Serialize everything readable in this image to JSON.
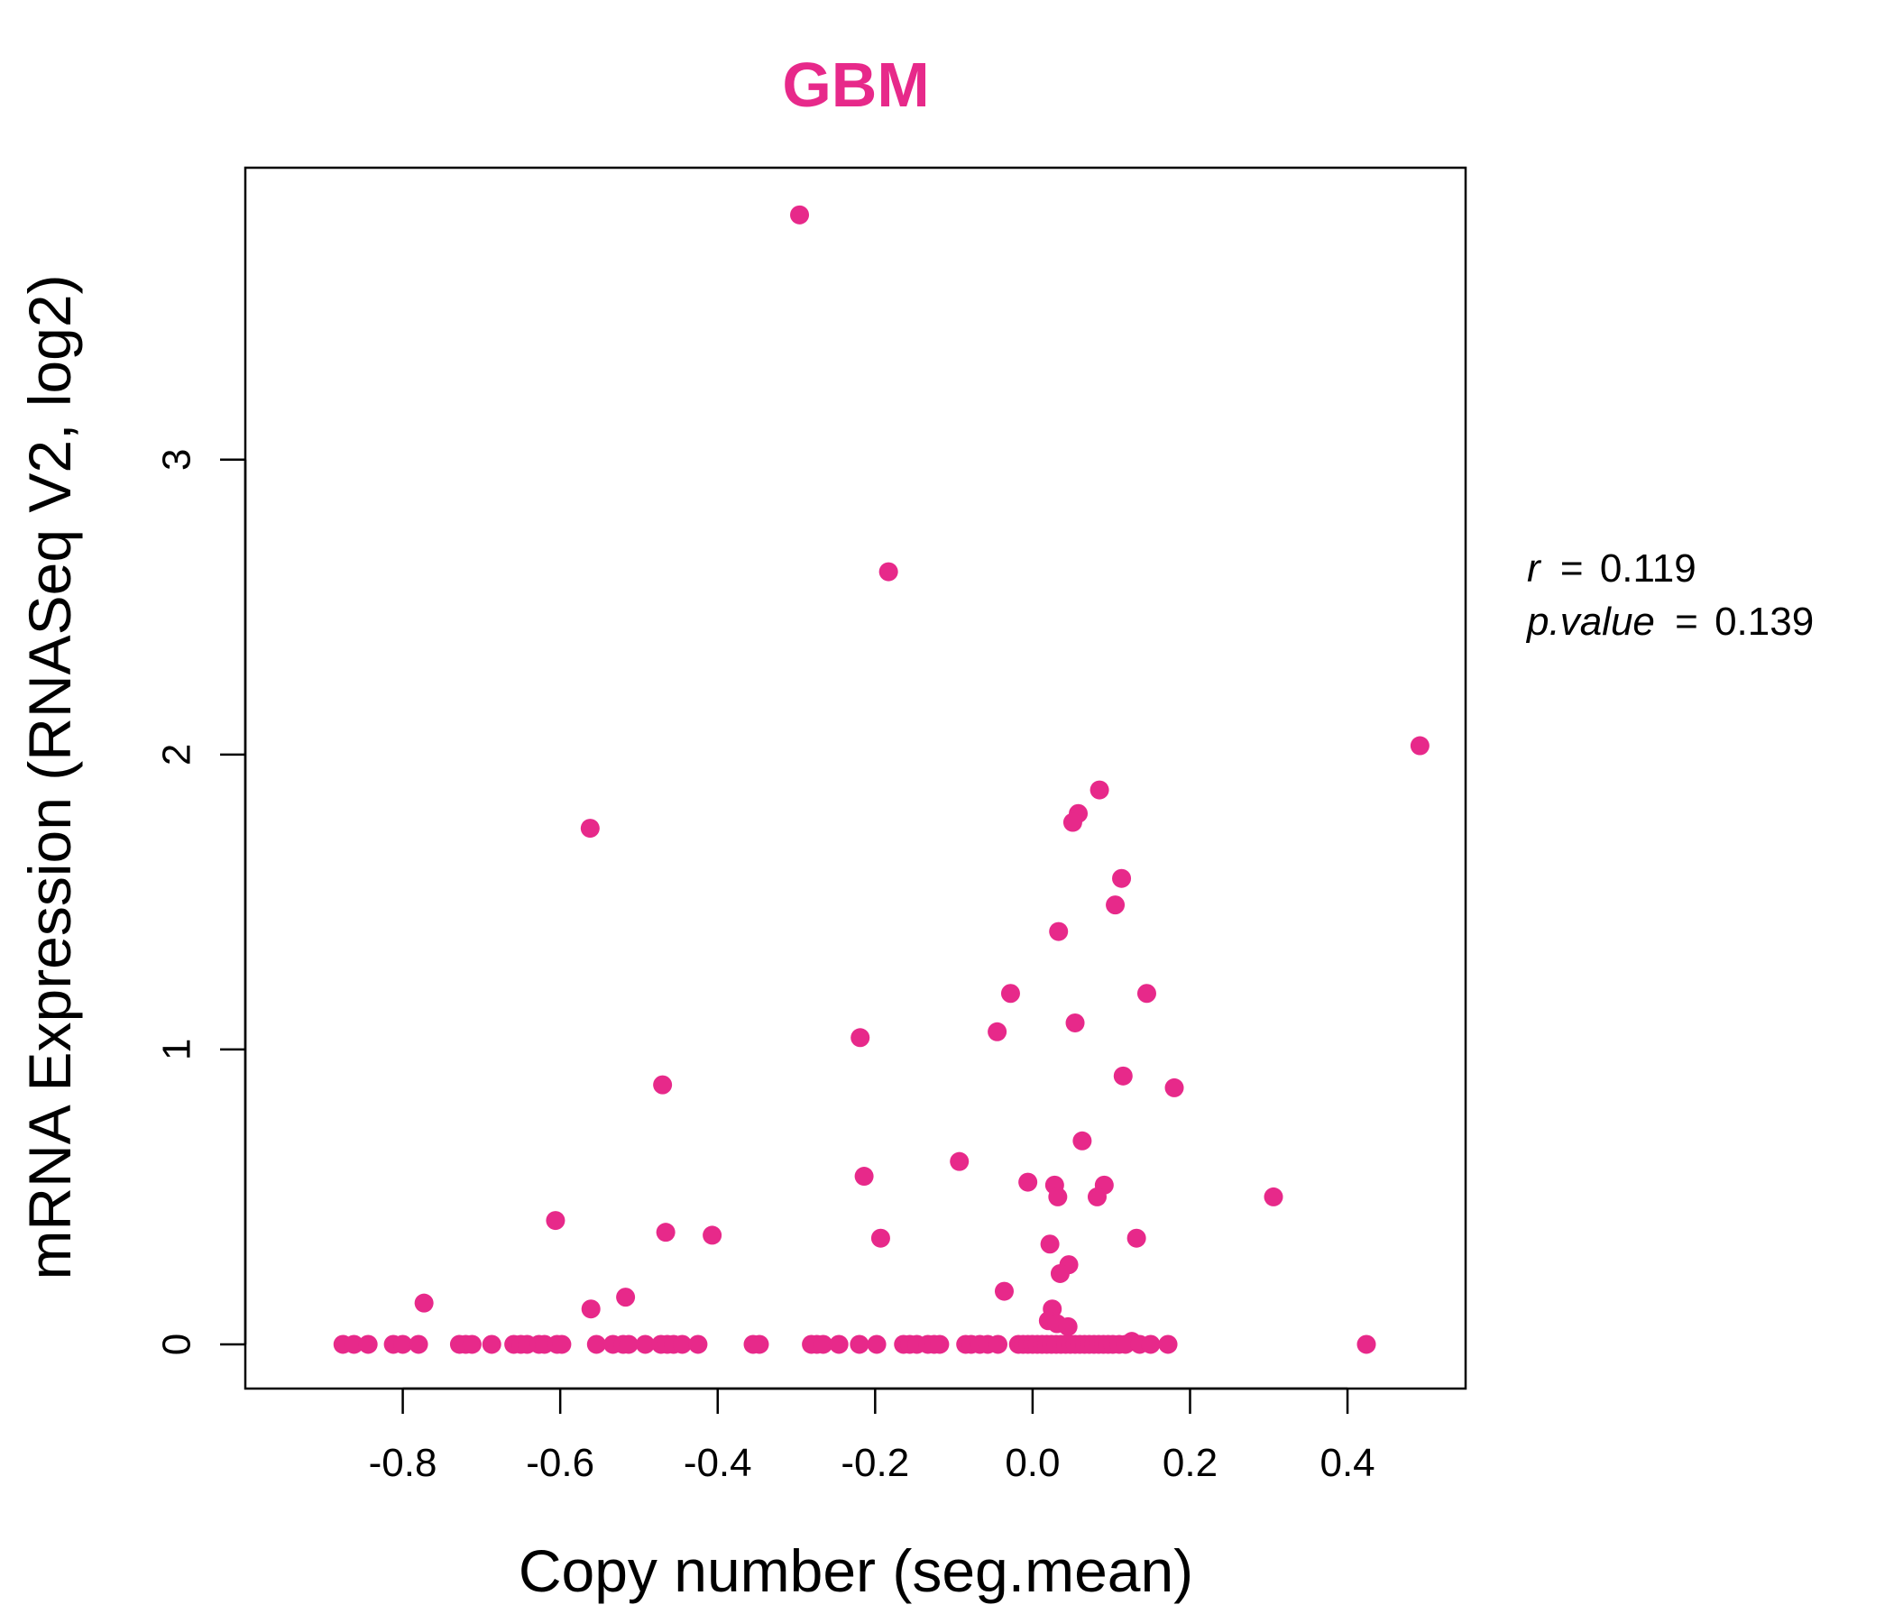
{
  "chart_data": {
    "type": "scatter",
    "title": "GBM",
    "xlabel": "Copy number (seg.mean)",
    "ylabel": "mRNA Expression (RNASeq V2, log2)",
    "xlim": [
      -1.0,
      0.55
    ],
    "ylim": [
      -0.15,
      3.99
    ],
    "x_ticks": [
      -0.8,
      -0.6,
      -0.4,
      -0.2,
      0.0,
      0.2,
      0.4
    ],
    "x_tick_labels": [
      "-0.8",
      "-0.6",
      "-0.4",
      "-0.2",
      "0.0",
      "0.2",
      "0.4"
    ],
    "y_ticks": [
      0,
      1,
      2,
      3
    ],
    "y_tick_labels": [
      "0",
      "1",
      "2",
      "3"
    ],
    "grid": false,
    "colors": {
      "points": "#E7298A",
      "title": "#E7298A",
      "axis": "#000000"
    },
    "annotation": {
      "r_label": "r",
      "r_value": "0.119",
      "p_label": "p.value",
      "p_value": "0.139"
    },
    "points": [
      {
        "x": -0.296,
        "y": 3.83
      },
      {
        "x": -0.183,
        "y": 2.62
      },
      {
        "x": 0.492,
        "y": 2.03
      },
      {
        "x": 0.085,
        "y": 1.88
      },
      {
        "x": 0.058,
        "y": 1.8
      },
      {
        "x": 0.051,
        "y": 1.77
      },
      {
        "x": -0.562,
        "y": 1.75
      },
      {
        "x": 0.113,
        "y": 1.58
      },
      {
        "x": 0.105,
        "y": 1.49
      },
      {
        "x": 0.033,
        "y": 1.4
      },
      {
        "x": -0.028,
        "y": 1.19
      },
      {
        "x": 0.145,
        "y": 1.19
      },
      {
        "x": 0.054,
        "y": 1.09
      },
      {
        "x": -0.045,
        "y": 1.06
      },
      {
        "x": -0.219,
        "y": 1.04
      },
      {
        "x": 0.115,
        "y": 0.91
      },
      {
        "x": -0.47,
        "y": 0.88
      },
      {
        "x": 0.18,
        "y": 0.87
      },
      {
        "x": 0.063,
        "y": 0.69
      },
      {
        "x": -0.093,
        "y": 0.62
      },
      {
        "x": -0.214,
        "y": 0.57
      },
      {
        "x": -0.006,
        "y": 0.55
      },
      {
        "x": 0.028,
        "y": 0.54
      },
      {
        "x": 0.091,
        "y": 0.54
      },
      {
        "x": 0.032,
        "y": 0.5
      },
      {
        "x": 0.082,
        "y": 0.5
      },
      {
        "x": 0.306,
        "y": 0.5
      },
      {
        "x": -0.606,
        "y": 0.42
      },
      {
        "x": -0.466,
        "y": 0.38
      },
      {
        "x": -0.407,
        "y": 0.37
      },
      {
        "x": -0.193,
        "y": 0.36
      },
      {
        "x": 0.132,
        "y": 0.36
      },
      {
        "x": 0.022,
        "y": 0.34
      },
      {
        "x": 0.046,
        "y": 0.27
      },
      {
        "x": 0.035,
        "y": 0.24
      },
      {
        "x": -0.036,
        "y": 0.18
      },
      {
        "x": -0.517,
        "y": 0.16
      },
      {
        "x": -0.773,
        "y": 0.14
      },
      {
        "x": -0.561,
        "y": 0.12
      },
      {
        "x": 0.025,
        "y": 0.12
      },
      {
        "x": 0.02,
        "y": 0.08
      },
      {
        "x": 0.031,
        "y": 0.07
      },
      {
        "x": 0.045,
        "y": 0.06
      },
      {
        "x": 0.126,
        "y": 0.01
      },
      {
        "x": 0.424,
        "y": 0.0
      },
      {
        "x": -0.876,
        "y": 0.0
      },
      {
        "x": -0.862,
        "y": 0.0
      },
      {
        "x": -0.844,
        "y": 0.0
      },
      {
        "x": -0.812,
        "y": 0.0
      },
      {
        "x": -0.8,
        "y": 0.0
      },
      {
        "x": -0.78,
        "y": 0.0
      },
      {
        "x": -0.728,
        "y": 0.0
      },
      {
        "x": -0.72,
        "y": 0.0
      },
      {
        "x": -0.712,
        "y": 0.0
      },
      {
        "x": -0.687,
        "y": 0.0
      },
      {
        "x": -0.659,
        "y": 0.0
      },
      {
        "x": -0.65,
        "y": 0.0
      },
      {
        "x": -0.642,
        "y": 0.0
      },
      {
        "x": -0.627,
        "y": 0.0
      },
      {
        "x": -0.62,
        "y": 0.0
      },
      {
        "x": -0.604,
        "y": 0.0
      },
      {
        "x": -0.598,
        "y": 0.0
      },
      {
        "x": -0.554,
        "y": 0.0
      },
      {
        "x": -0.533,
        "y": 0.0
      },
      {
        "x": -0.52,
        "y": 0.0
      },
      {
        "x": -0.513,
        "y": 0.0
      },
      {
        "x": -0.492,
        "y": 0.0
      },
      {
        "x": -0.472,
        "y": 0.0
      },
      {
        "x": -0.464,
        "y": 0.0
      },
      {
        "x": -0.456,
        "y": 0.0
      },
      {
        "x": -0.445,
        "y": 0.0
      },
      {
        "x": -0.425,
        "y": 0.0
      },
      {
        "x": -0.355,
        "y": 0.0
      },
      {
        "x": -0.347,
        "y": 0.0
      },
      {
        "x": -0.281,
        "y": 0.0
      },
      {
        "x": -0.274,
        "y": 0.0
      },
      {
        "x": -0.266,
        "y": 0.0
      },
      {
        "x": -0.246,
        "y": 0.0
      },
      {
        "x": -0.22,
        "y": 0.0
      },
      {
        "x": -0.198,
        "y": 0.0
      },
      {
        "x": -0.164,
        "y": 0.0
      },
      {
        "x": -0.156,
        "y": 0.0
      },
      {
        "x": -0.147,
        "y": 0.0
      },
      {
        "x": -0.133,
        "y": 0.0
      },
      {
        "x": -0.125,
        "y": 0.0
      },
      {
        "x": -0.118,
        "y": 0.0
      },
      {
        "x": -0.085,
        "y": 0.0
      },
      {
        "x": -0.078,
        "y": 0.0
      },
      {
        "x": -0.067,
        "y": 0.0
      },
      {
        "x": -0.057,
        "y": 0.0
      },
      {
        "x": -0.044,
        "y": 0.0
      },
      {
        "x": -0.018,
        "y": 0.0
      },
      {
        "x": -0.012,
        "y": 0.0
      },
      {
        "x": -0.006,
        "y": 0.0
      },
      {
        "x": 0.0,
        "y": 0.0
      },
      {
        "x": 0.006,
        "y": 0.0
      },
      {
        "x": 0.012,
        "y": 0.0
      },
      {
        "x": 0.018,
        "y": 0.0
      },
      {
        "x": 0.024,
        "y": 0.0
      },
      {
        "x": 0.03,
        "y": 0.0
      },
      {
        "x": 0.036,
        "y": 0.0
      },
      {
        "x": 0.042,
        "y": 0.0
      },
      {
        "x": 0.048,
        "y": 0.0
      },
      {
        "x": 0.054,
        "y": 0.0
      },
      {
        "x": 0.06,
        "y": 0.0
      },
      {
        "x": 0.066,
        "y": 0.0
      },
      {
        "x": 0.072,
        "y": 0.0
      },
      {
        "x": 0.078,
        "y": 0.0
      },
      {
        "x": 0.084,
        "y": 0.0
      },
      {
        "x": 0.09,
        "y": 0.0
      },
      {
        "x": 0.096,
        "y": 0.0
      },
      {
        "x": 0.102,
        "y": 0.0
      },
      {
        "x": 0.11,
        "y": 0.0
      },
      {
        "x": 0.118,
        "y": 0.0
      },
      {
        "x": 0.136,
        "y": 0.0
      },
      {
        "x": 0.15,
        "y": 0.0
      },
      {
        "x": 0.172,
        "y": 0.0
      }
    ]
  }
}
